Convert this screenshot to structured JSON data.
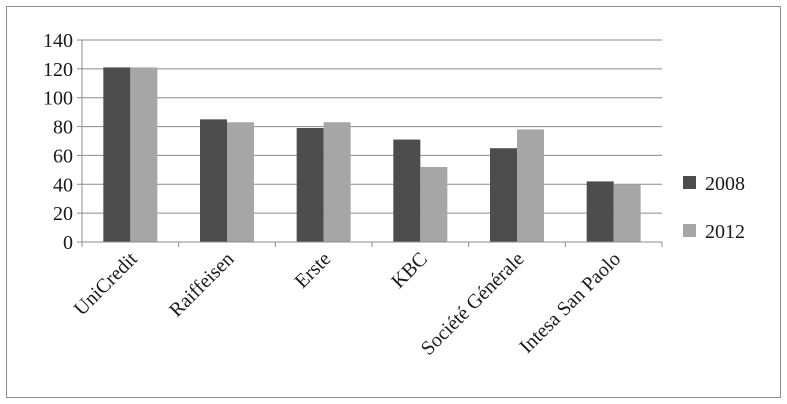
{
  "chart_data": {
    "type": "bar",
    "categories": [
      "UniCredit",
      "Raiffeisen",
      "Erste",
      "KBC",
      "Société Générale",
      "Intesa San Paolo"
    ],
    "series": [
      {
        "name": "2008",
        "color": "#4d4d4d",
        "values": [
          121,
          85,
          79,
          71,
          65,
          42
        ]
      },
      {
        "name": "2012",
        "color": "#a6a6a6",
        "values": [
          121,
          83,
          83,
          52,
          78,
          40
        ]
      }
    ],
    "y_ticks": [
      "0",
      "20",
      "40",
      "60",
      "80",
      "100",
      "120",
      "140"
    ],
    "ylim": [
      0,
      140
    ],
    "grid": true,
    "legend_position": "right"
  }
}
